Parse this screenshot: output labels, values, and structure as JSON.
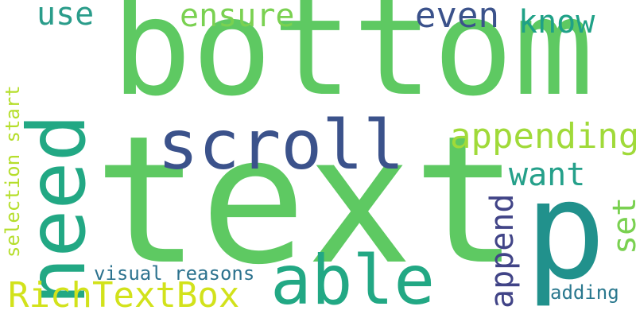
{
  "background": "#ffffff",
  "words": [
    {
      "key": "text",
      "label": "text",
      "color": "#5ec962"
    },
    {
      "key": "bottom",
      "label": "bottom",
      "color": "#5ec962"
    },
    {
      "key": "need",
      "label": "need",
      "color": "#22a884"
    },
    {
      "key": "p",
      "label": "p",
      "color": "#21918c"
    },
    {
      "key": "able",
      "label": "able",
      "color": "#22a884"
    },
    {
      "key": "scroll",
      "label": "scroll",
      "color": "#3b528b"
    },
    {
      "key": "appending",
      "label": "appending",
      "color": "#a0da39"
    },
    {
      "key": "even",
      "label": "even",
      "color": "#3b528b"
    },
    {
      "key": "ensure",
      "label": "ensure",
      "color": "#7ad151"
    },
    {
      "key": "know",
      "label": "know",
      "color": "#1fa187"
    },
    {
      "key": "use",
      "label": "use",
      "color": "#2a9c8a"
    },
    {
      "key": "want",
      "label": "want",
      "color": "#25a08a"
    },
    {
      "key": "richtextbox",
      "label": "RichTextBox",
      "color": "#d2e21b"
    },
    {
      "key": "append",
      "label": "append",
      "color": "#414487"
    },
    {
      "key": "set",
      "label": "set",
      "color": "#7ad151"
    },
    {
      "key": "selection_start",
      "label": "selection start",
      "color": "#b5de2b"
    },
    {
      "key": "visual_reasons",
      "label": "visual reasons",
      "color": "#2c728e"
    },
    {
      "key": "adding",
      "label": "adding",
      "color": "#2a788e"
    }
  ]
}
